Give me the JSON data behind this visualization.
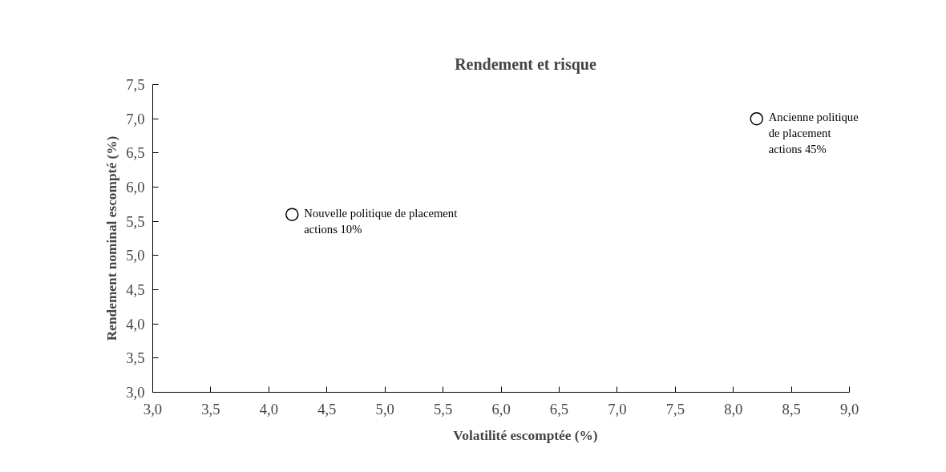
{
  "chart_data": {
    "type": "scatter",
    "title": "Rendement et risque",
    "xlabel": "Volatilité escomptée (%)",
    "ylabel": "Rendement nominal escompté (%)",
    "x": [
      4.2,
      8.2
    ],
    "values": [
      5.6,
      7.0
    ],
    "color": "#000000",
    "marker": "circle",
    "grid": false,
    "xlim": [
      3.0,
      9.0
    ],
    "xticks": [
      {
        "value": 3.0,
        "label": "3,0"
      },
      {
        "value": 3.5,
        "label": "3,5"
      },
      {
        "value": 4.0,
        "label": "4,0"
      },
      {
        "value": 4.5,
        "label": "4,5"
      },
      {
        "value": 5.0,
        "label": "5,0"
      },
      {
        "value": 5.5,
        "label": "5,5"
      },
      {
        "value": 6.0,
        "label": "6,0"
      },
      {
        "value": 6.5,
        "label": "6,5"
      },
      {
        "value": 7.0,
        "label": "7,0"
      },
      {
        "value": 7.5,
        "label": "7,5"
      },
      {
        "value": 8.0,
        "label": "8,0"
      },
      {
        "value": 8.5,
        "label": "8,5"
      },
      {
        "value": 9.0,
        "label": "9,0"
      }
    ],
    "ylim": [
      3.0,
      7.5
    ],
    "yticks": [
      {
        "value": 3.0,
        "label": "3,0"
      },
      {
        "value": 3.5,
        "label": "3,5"
      },
      {
        "value": 4.0,
        "label": "4,0"
      },
      {
        "value": 4.5,
        "label": "4,5"
      },
      {
        "value": 5.0,
        "label": "5,0"
      },
      {
        "value": 5.5,
        "label": "5,5"
      },
      {
        "value": 6.0,
        "label": "6,0"
      },
      {
        "value": 6.5,
        "label": "6,5"
      },
      {
        "value": 7.0,
        "label": "7,0"
      },
      {
        "value": 7.5,
        "label": "7,5"
      }
    ],
    "annotations": [
      {
        "text": "Nouvelle  politique de placement\nactions 10%",
        "x": 4.2,
        "y": 5.6
      },
      {
        "text": "Ancienne politique\n de placement\n actions 45%",
        "x": 8.2,
        "y": 7.0
      }
    ]
  }
}
